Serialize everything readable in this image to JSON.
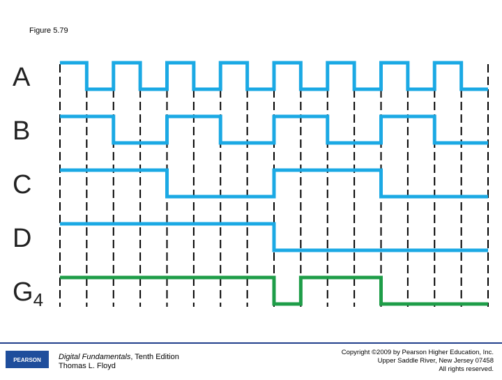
{
  "header": {
    "title": "Figure 5.79"
  },
  "diagram": {
    "signals": [
      {
        "label": "A",
        "color": "#1ba9e4",
        "levels": [
          1,
          0,
          1,
          0,
          1,
          0,
          1,
          0,
          1,
          0,
          1,
          0,
          1,
          0,
          1,
          0
        ]
      },
      {
        "label": "B",
        "color": "#1ba9e4",
        "levels": [
          1,
          1,
          0,
          0,
          1,
          1,
          0,
          0,
          1,
          1,
          0,
          0,
          1,
          1,
          0,
          0
        ]
      },
      {
        "label": "C",
        "color": "#1ba9e4",
        "levels": [
          1,
          1,
          1,
          1,
          0,
          0,
          0,
          0,
          1,
          1,
          1,
          1,
          0,
          0,
          0,
          0
        ]
      },
      {
        "label": "D",
        "color": "#1ba9e4",
        "levels": [
          1,
          1,
          1,
          1,
          1,
          1,
          1,
          1,
          0,
          0,
          0,
          0,
          0,
          0,
          0,
          0
        ]
      },
      {
        "label": "G",
        "subscript": "4",
        "color": "#1e9d48",
        "levels": [
          1,
          1,
          1,
          1,
          1,
          1,
          1,
          1,
          0,
          1,
          1,
          1,
          0,
          0,
          0,
          0
        ]
      }
    ]
  },
  "footer": {
    "logo": "PEARSON",
    "book_title": "Digital Fundamentals",
    "edition": ", Tenth Edition",
    "author": "Thomas L. Floyd",
    "copyright": [
      "Copyright ©2009 by Pearson Higher Education, Inc.",
      "Upper Saddle River, New Jersey 07458",
      "All rights reserved."
    ]
  }
}
